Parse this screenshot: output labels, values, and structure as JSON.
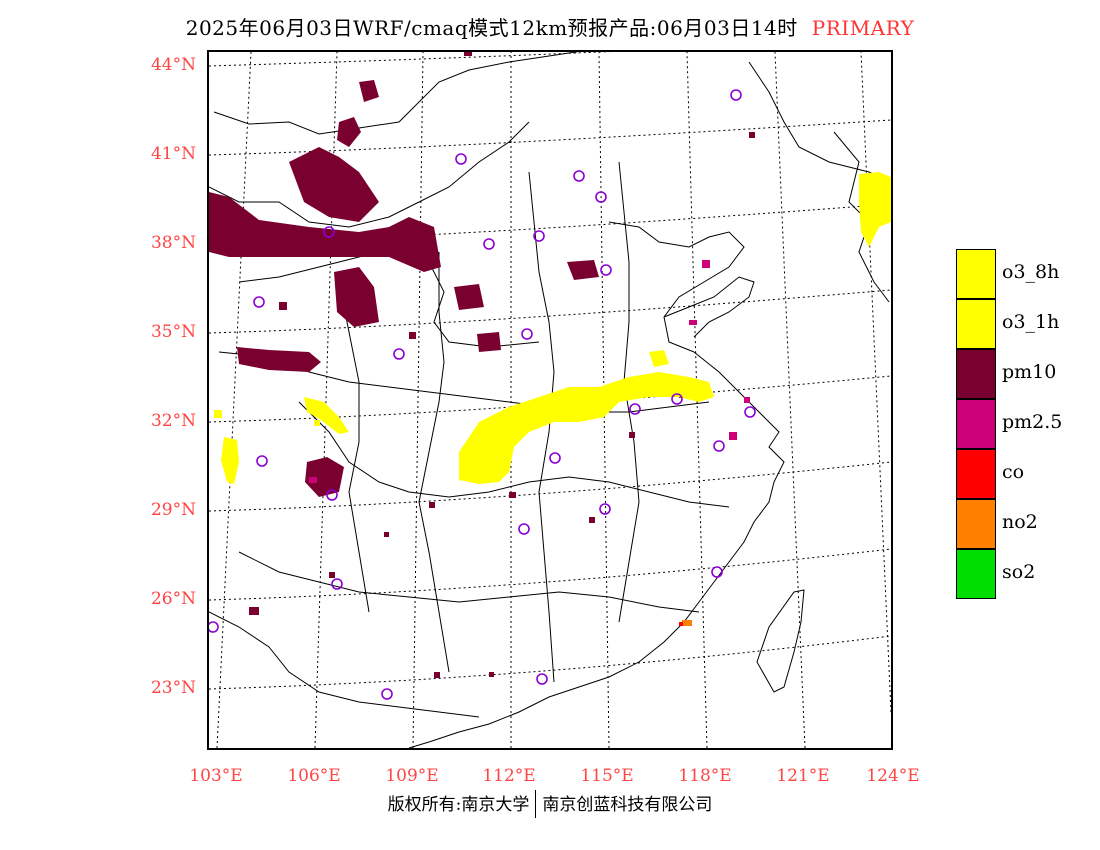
{
  "title": {
    "main": "2025年06月03日WRF/cmaq模式12km预报产品:06月03日14时",
    "tag": "PRIMARY"
  },
  "axes": {
    "lat_labels": [
      "44°N",
      "41°N",
      "38°N",
      "35°N",
      "32°N",
      "29°N",
      "26°N",
      "23°N"
    ],
    "lon_labels": [
      "103°E",
      "106°E",
      "109°E",
      "112°E",
      "115°E",
      "118°E",
      "121°E",
      "124°E"
    ],
    "label_color": "#ff4444"
  },
  "legend": {
    "items": [
      {
        "label": "o3_8h",
        "color": "#ffff00"
      },
      {
        "label": "o3_1h",
        "color": "#ffff00"
      },
      {
        "label": "pm10",
        "color": "#7a0030"
      },
      {
        "label": "pm2.5",
        "color": "#cc0077"
      },
      {
        "label": "co",
        "color": "#ff0000"
      },
      {
        "label": "no2",
        "color": "#ff7f00"
      },
      {
        "label": "so2",
        "color": "#00dd00"
      }
    ]
  },
  "footer": {
    "left": "版权所有:南京大学",
    "right": "南京创蓝科技有限公司"
  }
}
